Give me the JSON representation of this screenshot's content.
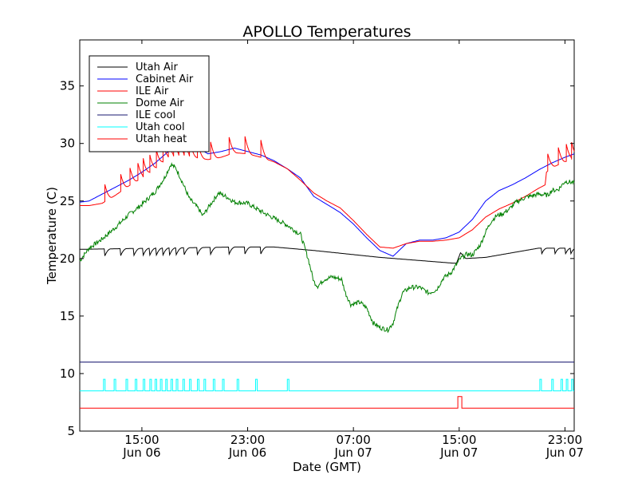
{
  "chart_data": {
    "type": "line",
    "title": "APOLLO Temperatures",
    "xlabel": "Date (GMT)",
    "ylabel": "Temperature (C)",
    "xlim": [
      10.3,
      47.7
    ],
    "ylim": [
      5,
      39
    ],
    "grid": false,
    "legend_position": "top-left",
    "x_unit": "hours since Jun 06 00:00 GMT",
    "xticks": [
      {
        "value": 15,
        "line1": "15:00",
        "line2": "Jun 06"
      },
      {
        "value": 23,
        "line1": "23:00",
        "line2": "Jun 06"
      },
      {
        "value": 31,
        "line1": "07:00",
        "line2": "Jun 07"
      },
      {
        "value": 39,
        "line1": "15:00",
        "line2": "Jun 07"
      },
      {
        "value": 47,
        "line1": "23:00",
        "line2": "Jun 07"
      }
    ],
    "yticks": [
      5,
      10,
      15,
      20,
      25,
      30,
      35
    ],
    "series": [
      {
        "name": "Utah Air",
        "color": "#000000",
        "baseline": [
          [
            10.3,
            20.8
          ],
          [
            16,
            20.9
          ],
          [
            22,
            21.0
          ],
          [
            25,
            21.0
          ],
          [
            28,
            20.7
          ],
          [
            33,
            20.1
          ],
          [
            38.5,
            19.6
          ],
          [
            38.8,
            19.6
          ],
          [
            39.1,
            20.5
          ],
          [
            39.5,
            20.0
          ],
          [
            41,
            20.1
          ],
          [
            42,
            20.3
          ],
          [
            45,
            20.9
          ],
          [
            47.7,
            20.9
          ]
        ],
        "dips": [
          12.2,
          13.4,
          14.4,
          15.1,
          15.6,
          16.1,
          16.6,
          17.1,
          17.6,
          18.2,
          19.2,
          20.2,
          21.6,
          22.8,
          24.0,
          45.2,
          46.2,
          47.0,
          47.4
        ],
        "dip_depth": 0.6
      },
      {
        "name": "Cabinet Air",
        "color": "#0000ff",
        "baseline": [
          [
            10.3,
            24.9
          ],
          [
            11,
            25.0
          ],
          [
            12,
            25.6
          ],
          [
            13,
            26.2
          ],
          [
            14,
            26.8
          ],
          [
            15,
            27.5
          ],
          [
            16,
            28.3
          ],
          [
            17,
            29.3
          ],
          [
            18,
            30.0
          ],
          [
            19,
            29.8
          ],
          [
            20,
            29.1
          ],
          [
            21,
            29.3
          ],
          [
            22,
            29.6
          ],
          [
            23,
            29.3
          ],
          [
            24,
            29.0
          ],
          [
            25,
            28.5
          ],
          [
            26,
            27.8
          ],
          [
            27,
            27.0
          ],
          [
            28,
            25.4
          ],
          [
            29,
            24.7
          ],
          [
            30,
            24.0
          ],
          [
            31,
            23.0
          ],
          [
            32,
            21.8
          ],
          [
            33,
            20.7
          ],
          [
            34,
            20.2
          ],
          [
            35,
            21.3
          ],
          [
            36,
            21.6
          ],
          [
            37,
            21.6
          ],
          [
            38,
            21.8
          ],
          [
            39,
            22.3
          ],
          [
            40,
            23.4
          ],
          [
            41,
            25.0
          ],
          [
            42,
            25.9
          ],
          [
            43,
            26.4
          ],
          [
            44,
            27.0
          ],
          [
            45,
            27.7
          ],
          [
            46,
            28.3
          ],
          [
            47,
            28.8
          ],
          [
            47.7,
            29.1
          ]
        ],
        "dips": [],
        "dip_depth": 0
      },
      {
        "name": "ILE Air",
        "color": "#ff0000",
        "baseline": [
          [
            10.3,
            24.6
          ],
          [
            11,
            24.6
          ],
          [
            12,
            24.8
          ],
          [
            13,
            25.5
          ],
          [
            14,
            26.3
          ],
          [
            15,
            27.0
          ],
          [
            16,
            27.8
          ],
          [
            17,
            28.8
          ],
          [
            18,
            29.0
          ],
          [
            19,
            28.8
          ],
          [
            20,
            28.6
          ],
          [
            21,
            28.8
          ],
          [
            22,
            29.2
          ],
          [
            23,
            29.1
          ],
          [
            24,
            28.8
          ],
          [
            25,
            28.4
          ],
          [
            26,
            27.8
          ],
          [
            27,
            26.8
          ],
          [
            28,
            25.7
          ],
          [
            29,
            25.0
          ],
          [
            30,
            24.4
          ],
          [
            31,
            23.3
          ],
          [
            32,
            22.1
          ],
          [
            33,
            21.0
          ],
          [
            34,
            20.9
          ],
          [
            35,
            21.3
          ],
          [
            36,
            21.5
          ],
          [
            37,
            21.5
          ],
          [
            38,
            21.6
          ],
          [
            39,
            21.8
          ],
          [
            40,
            22.5
          ],
          [
            41,
            23.6
          ],
          [
            42,
            24.3
          ],
          [
            43,
            24.8
          ],
          [
            44,
            25.4
          ],
          [
            45,
            26.1
          ],
          [
            45.5,
            26.4
          ],
          [
            45.6,
            27.5
          ],
          [
            46,
            27.9
          ],
          [
            47,
            28.4
          ],
          [
            47.7,
            28.7
          ]
        ],
        "spikes": [
          12.2,
          13.4,
          14.1,
          14.7,
          15.1,
          15.6,
          16.1,
          16.6,
          17.0,
          17.4,
          17.8,
          18.2,
          18.6,
          19.2,
          20.2,
          21.6,
          22.8,
          24.0,
          45.7,
          46.5,
          47.1,
          47.5
        ],
        "spike_height": 1.5
      },
      {
        "name": "Dome Air",
        "color": "#008000",
        "baseline": [
          [
            10.3,
            19.8
          ],
          [
            11,
            20.9
          ],
          [
            12,
            21.7
          ],
          [
            13,
            22.7
          ],
          [
            14,
            23.8
          ],
          [
            15,
            24.7
          ],
          [
            16,
            25.8
          ],
          [
            16.7,
            27.0
          ],
          [
            17.2,
            28.2
          ],
          [
            17.6,
            27.8
          ],
          [
            18,
            26.8
          ],
          [
            18.6,
            25.2
          ],
          [
            19.3,
            24.3
          ],
          [
            19.6,
            23.7
          ],
          [
            20,
            24.4
          ],
          [
            20.8,
            25.7
          ],
          [
            21.5,
            25.3
          ],
          [
            22,
            24.9
          ],
          [
            23,
            24.8
          ],
          [
            24,
            24.1
          ],
          [
            25,
            23.5
          ],
          [
            26,
            22.9
          ],
          [
            26.6,
            22.4
          ],
          [
            27,
            22.1
          ],
          [
            27.3,
            21.0
          ],
          [
            27.6,
            19.9
          ],
          [
            28,
            18.0
          ],
          [
            28.3,
            17.6
          ],
          [
            28.8,
            18.2
          ],
          [
            29.4,
            18.4
          ],
          [
            30.1,
            18.2
          ],
          [
            30.4,
            17.0
          ],
          [
            30.8,
            16.0
          ],
          [
            31.5,
            16.2
          ],
          [
            32,
            15.7
          ],
          [
            32.5,
            14.4
          ],
          [
            33,
            14.0
          ],
          [
            33.6,
            13.8
          ],
          [
            34,
            14.4
          ],
          [
            34.3,
            15.6
          ],
          [
            34.7,
            17.0
          ],
          [
            35.3,
            17.5
          ],
          [
            36,
            17.5
          ],
          [
            36.7,
            17.0
          ],
          [
            37.3,
            17.3
          ],
          [
            37.8,
            18.3
          ],
          [
            38.4,
            18.8
          ],
          [
            39.1,
            20.0
          ],
          [
            39.6,
            20.4
          ],
          [
            40,
            20.3
          ],
          [
            40.6,
            21.2
          ],
          [
            41,
            22.3
          ],
          [
            41.4,
            23.2
          ],
          [
            41.8,
            23.7
          ],
          [
            42.3,
            23.9
          ],
          [
            42.8,
            24.3
          ],
          [
            43.3,
            24.9
          ],
          [
            44,
            25.3
          ],
          [
            45,
            25.6
          ],
          [
            45.7,
            25.5
          ],
          [
            46,
            25.9
          ],
          [
            46.5,
            26.0
          ],
          [
            47,
            26.7
          ],
          [
            47.7,
            26.6
          ]
        ],
        "noise": 0.2
      },
      {
        "name": "ILE cool",
        "color": "#191970",
        "baseline": [
          [
            10.3,
            11.0
          ],
          [
            47.7,
            11.0
          ]
        ]
      },
      {
        "name": "Utah cool",
        "color": "#00ffff",
        "baseline_value": 8.5,
        "pulse_value": 9.5,
        "pulses": [
          12.1,
          12.9,
          13.8,
          14.5,
          15.1,
          15.6,
          16.0,
          16.4,
          16.8,
          17.2,
          17.6,
          18.1,
          18.6,
          19.2,
          19.7,
          20.4,
          21.1,
          22.2,
          23.6,
          26.0,
          45.1,
          46.0,
          46.7,
          47.1,
          47.5
        ],
        "pulse_width": 0.12
      },
      {
        "name": "Utah heat",
        "color": "#ff0000",
        "baseline_value": 7.0,
        "pulse_value": 8.0,
        "pulses": [
          38.9
        ],
        "pulse_width": 0.3
      }
    ]
  }
}
